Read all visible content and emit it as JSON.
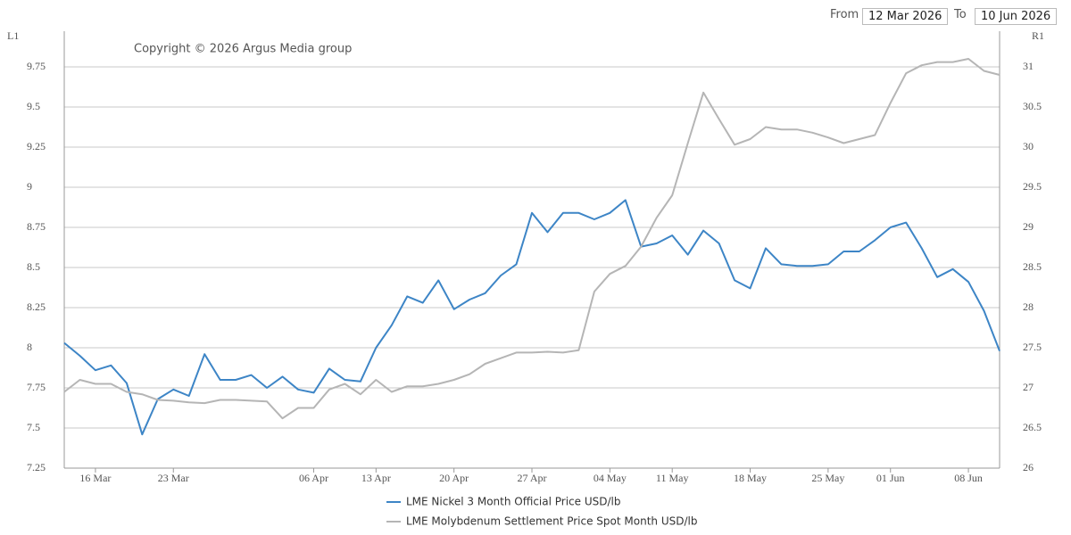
{
  "date_range": {
    "from_label": "From",
    "from": "12 Mar 2026",
    "to_label": "To",
    "to": "10 Jun 2026"
  },
  "chart_data": {
    "type": "line",
    "annotation": "Copyright © 2026 Argus Media group",
    "y_label": "L1",
    "y2_label": "R1",
    "categories": [
      null,
      null,
      "16 Mar",
      null,
      null,
      null,
      null,
      "23 Mar",
      null,
      null,
      null,
      null,
      null,
      null,
      null,
      null,
      "06 Apr",
      null,
      null,
      null,
      "13 Apr",
      null,
      null,
      null,
      null,
      "20 Apr",
      null,
      null,
      null,
      null,
      "27 Apr",
      null,
      null,
      null,
      null,
      "04 May",
      null,
      null,
      null,
      "11 May",
      null,
      null,
      null,
      null,
      "18 May",
      null,
      null,
      null,
      null,
      "25 May",
      null,
      null,
      null,
      "01 Jun",
      null,
      null,
      null,
      null,
      "08 Jun",
      null,
      null
    ],
    "ylim": [
      7.25,
      10.0
    ],
    "yticks": [
      7.25,
      7.5,
      7.75,
      8,
      8.25,
      8.5,
      8.75,
      9,
      9.25,
      9.5,
      9.75
    ],
    "y2lim": [
      26,
      31.5
    ],
    "y2ticks": [
      26,
      26.5,
      27,
      27.5,
      28,
      28.5,
      29,
      29.5,
      30,
      30.5,
      31
    ],
    "grid": true,
    "legend": "bottom",
    "series": [
      {
        "name": "LME Nickel 3 Month Official Price USD/lb",
        "color": "#3d85c6",
        "values": [
          8.03,
          7.95,
          7.86,
          7.89,
          7.78,
          7.46,
          7.68,
          7.74,
          7.7,
          7.96,
          7.8,
          7.8,
          7.83,
          7.75,
          7.82,
          7.74,
          7.72,
          7.87,
          7.8,
          7.79,
          8.0,
          8.14,
          8.32,
          8.28,
          8.42,
          8.24,
          8.3,
          8.34,
          8.45,
          8.52,
          8.84,
          8.72,
          8.84,
          8.84,
          8.8,
          8.84,
          8.92,
          8.63,
          8.65,
          8.7,
          8.58,
          8.73,
          8.65,
          8.42,
          8.37,
          8.62,
          8.52,
          8.51,
          8.51,
          8.52,
          8.6,
          8.6,
          8.67,
          8.75,
          8.78,
          8.62,
          8.44,
          8.49,
          8.41,
          8.23,
          7.98
        ]
      },
      {
        "name": "LME Molybdenum Settlement Price Spot Month USD/lb",
        "color": "#b5b5b5",
        "axis": "y2",
        "values": [
          26.95,
          27.1,
          27.05,
          27.05,
          26.95,
          26.92,
          26.85,
          26.84,
          26.82,
          26.81,
          26.85,
          26.85,
          26.84,
          26.83,
          26.62,
          26.75,
          26.75,
          26.98,
          27.05,
          26.92,
          27.1,
          26.95,
          27.02,
          27.02,
          27.05,
          27.1,
          27.17,
          27.3,
          27.37,
          27.44,
          27.44,
          27.45,
          27.44,
          27.47,
          28.2,
          28.42,
          28.52,
          28.76,
          29.12,
          29.4,
          30.05,
          30.68,
          30.35,
          30.03,
          30.1,
          30.25,
          30.22,
          30.22,
          30.18,
          30.12,
          30.05,
          30.1,
          30.15,
          30.55,
          30.92,
          31.02,
          31.06,
          31.06,
          31.1,
          30.95,
          30.9
        ]
      }
    ]
  }
}
